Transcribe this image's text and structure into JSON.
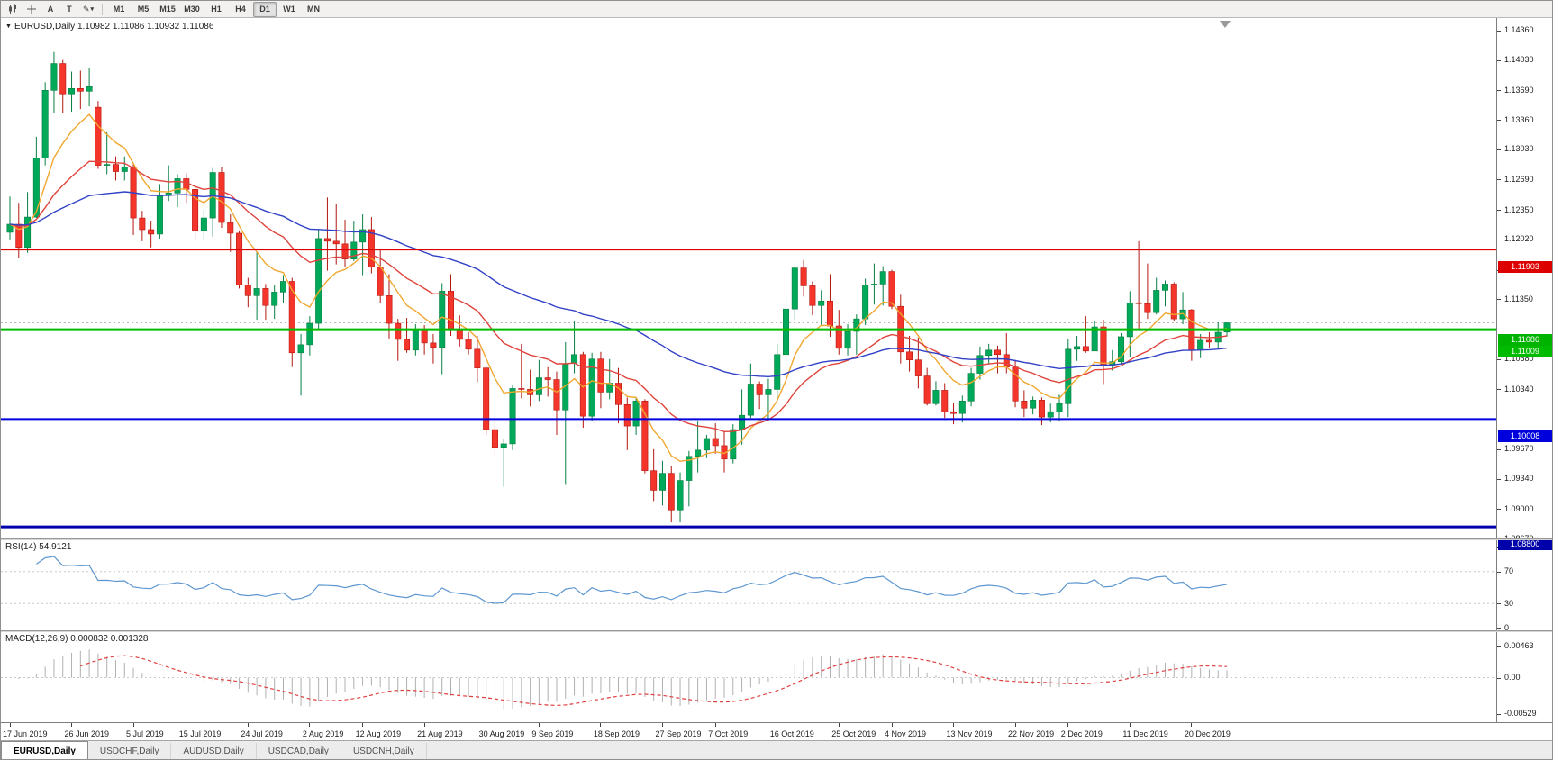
{
  "toolbar": {
    "tool_icons": [
      "candlestick-chart-icon",
      "crosshair-icon"
    ],
    "tool_buttons": [
      "A",
      "T"
    ],
    "draw_button": {
      "icon": "pencil-icon",
      "dropdown_icon": "chevron-down-icon"
    },
    "timeframes": [
      "M1",
      "M5",
      "M15",
      "M30",
      "H1",
      "H4",
      "D1",
      "W1",
      "MN"
    ],
    "active_timeframe": "D1"
  },
  "chart": {
    "symbol_label": "EURUSD,Daily",
    "ohlc_label": "1.10982 1.11086 1.10932 1.11086",
    "collapse_arrow": "▼",
    "price_axis_ticks": [
      "1.14360",
      "1.14030",
      "1.13690",
      "1.13360",
      "1.13030",
      "1.12690",
      "1.12350",
      "1.12020",
      "1.11680",
      "1.11350",
      "1.10680",
      "1.10340",
      "1.09670",
      "1.09340",
      "1.09000",
      "1.08670"
    ],
    "levels": [
      {
        "price": 1.11903,
        "label": "1.11903",
        "color": "#dd0000",
        "width": 1.2
      },
      {
        "price": 1.11009,
        "label": "1.11009",
        "color": "#00bb00",
        "width": 3
      },
      {
        "price": 1.10008,
        "label": "1.10008",
        "color": "#0000dd",
        "width": 2
      },
      {
        "price": 1.088,
        "label": "1.08800",
        "color": "#0000aa",
        "width": 3
      }
    ],
    "bid": {
      "price": 1.11086,
      "label": "1.11086",
      "color": "#00b300"
    },
    "colors": {
      "up": "#00a859",
      "up_border": "#067f42",
      "down": "#f4352b",
      "down_border": "#b3160e",
      "bid_line": "#b8b8b8",
      "rsi": "#5e97d0",
      "macd_hist": "#b0b0b0",
      "macd_signal": "#e04040",
      "panel_level": "#c8c8c8"
    }
  },
  "chart_data": {
    "type": "candlestick",
    "symbol": "EURUSD",
    "timeframe": "Daily",
    "ohlc": [
      [
        1.121,
        1.125,
        1.1202,
        1.1219
      ],
      [
        1.1219,
        1.1243,
        1.1181,
        1.1193
      ],
      [
        1.1193,
        1.1255,
        1.1187,
        1.1227
      ],
      [
        1.1227,
        1.1317,
        1.1226,
        1.1293
      ],
      [
        1.1293,
        1.1378,
        1.1285,
        1.1369
      ],
      [
        1.1369,
        1.1412,
        1.1344,
        1.1399
      ],
      [
        1.1399,
        1.1403,
        1.1344,
        1.1365
      ],
      [
        1.1365,
        1.139,
        1.1345,
        1.1371
      ],
      [
        1.1371,
        1.1391,
        1.1348,
        1.1368
      ],
      [
        1.1368,
        1.1394,
        1.1351,
        1.1373
      ],
      [
        1.135,
        1.1357,
        1.1281,
        1.1285
      ],
      [
        1.1285,
        1.1322,
        1.1275,
        1.1286
      ],
      [
        1.1286,
        1.1295,
        1.1268,
        1.1278
      ],
      [
        1.1278,
        1.1295,
        1.1268,
        1.1283
      ],
      [
        1.1283,
        1.1288,
        1.1207,
        1.1226
      ],
      [
        1.1226,
        1.1234,
        1.12,
        1.1213
      ],
      [
        1.1213,
        1.1223,
        1.1193,
        1.1208
      ],
      [
        1.1208,
        1.1264,
        1.1203,
        1.1252
      ],
      [
        1.1252,
        1.1285,
        1.1245,
        1.1254
      ],
      [
        1.1254,
        1.1275,
        1.1238,
        1.127
      ],
      [
        1.127,
        1.1276,
        1.1243,
        1.1258
      ],
      [
        1.1258,
        1.1262,
        1.1202,
        1.1212
      ],
      [
        1.1212,
        1.1235,
        1.1201,
        1.1226
      ],
      [
        1.1226,
        1.1282,
        1.1205,
        1.1277
      ],
      [
        1.1277,
        1.1283,
        1.1215,
        1.1221
      ],
      [
        1.1221,
        1.123,
        1.1188,
        1.1209
      ],
      [
        1.1209,
        1.1212,
        1.1147,
        1.1151
      ],
      [
        1.1151,
        1.1159,
        1.1126,
        1.1139
      ],
      [
        1.1139,
        1.1188,
        1.1112,
        1.1147
      ],
      [
        1.1147,
        1.1152,
        1.1112,
        1.1128
      ],
      [
        1.1128,
        1.1151,
        1.1113,
        1.1143
      ],
      [
        1.1143,
        1.1162,
        1.1131,
        1.1155
      ],
      [
        1.1155,
        1.1159,
        1.1059,
        1.1075
      ],
      [
        1.1075,
        1.1096,
        1.1027,
        1.1084
      ],
      [
        1.1084,
        1.1116,
        1.1072,
        1.1108
      ],
      [
        1.1108,
        1.1213,
        1.1101,
        1.1203
      ],
      [
        1.1203,
        1.1249,
        1.1167,
        1.12
      ],
      [
        1.12,
        1.1242,
        1.1174,
        1.1197
      ],
      [
        1.1197,
        1.1224,
        1.1171,
        1.118
      ],
      [
        1.118,
        1.1223,
        1.1178,
        1.1199
      ],
      [
        1.1199,
        1.123,
        1.1162,
        1.1213
      ],
      [
        1.1213,
        1.1227,
        1.1164,
        1.1171
      ],
      [
        1.1171,
        1.119,
        1.1131,
        1.1139
      ],
      [
        1.1139,
        1.1163,
        1.1091,
        1.1108
      ],
      [
        1.1108,
        1.1113,
        1.1066,
        1.109
      ],
      [
        1.109,
        1.1114,
        1.1075,
        1.1078
      ],
      [
        1.1078,
        1.1107,
        1.1072,
        1.11
      ],
      [
        1.11,
        1.1106,
        1.1073,
        1.1086
      ],
      [
        1.1086,
        1.1096,
        1.1063,
        1.1081
      ],
      [
        1.1081,
        1.1153,
        1.1051,
        1.1144
      ],
      [
        1.1144,
        1.1163,
        1.1094,
        1.1101
      ],
      [
        1.1101,
        1.1117,
        1.1082,
        1.109
      ],
      [
        1.109,
        1.1098,
        1.1073,
        1.1079
      ],
      [
        1.1079,
        1.1094,
        1.1042,
        1.1058
      ],
      [
        1.1058,
        1.1061,
        1.0983,
        1.0989
      ],
      [
        1.0989,
        1.0998,
        1.0958,
        1.0969
      ],
      [
        1.0969,
        1.0979,
        1.0925,
        1.0973
      ],
      [
        1.0973,
        1.1039,
        1.0966,
        1.1035
      ],
      [
        1.1035,
        1.1085,
        1.1024,
        1.1034
      ],
      [
        1.1034,
        1.1056,
        1.1015,
        1.1028
      ],
      [
        1.1028,
        1.1067,
        1.1021,
        1.1047
      ],
      [
        1.1047,
        1.1059,
        1.1026,
        1.1045
      ],
      [
        1.1045,
        1.1054,
        1.0983,
        1.1011
      ],
      [
        1.1011,
        1.1087,
        1.0927,
        1.1063
      ],
      [
        1.1063,
        1.111,
        1.1052,
        1.1073
      ],
      [
        1.1073,
        1.1076,
        1.0991,
        1.1004
      ],
      [
        1.1004,
        1.1075,
        1.0999,
        1.1068
      ],
      [
        1.1068,
        1.1076,
        1.1013,
        1.1031
      ],
      [
        1.1031,
        1.1068,
        1.1023,
        1.1041
      ],
      [
        1.1041,
        1.1058,
        1.0996,
        1.1017
      ],
      [
        1.1017,
        1.1025,
        1.0966,
        1.0993
      ],
      [
        1.0993,
        1.1024,
        1.0983,
        1.1021
      ],
      [
        1.1021,
        1.1023,
        1.094,
        1.0943
      ],
      [
        1.0943,
        1.0967,
        1.0909,
        1.0921
      ],
      [
        1.0921,
        1.0954,
        1.0904,
        1.094
      ],
      [
        1.094,
        1.0948,
        1.0885,
        1.0899
      ],
      [
        1.0899,
        1.0941,
        1.0885,
        1.0932
      ],
      [
        1.0932,
        1.0965,
        1.0903,
        1.0959
      ],
      [
        1.0959,
        1.0999,
        1.0941,
        1.0966
      ],
      [
        1.0966,
        1.0983,
        1.0957,
        1.0979
      ],
      [
        1.0979,
        1.0996,
        1.0962,
        1.0971
      ],
      [
        1.0971,
        1.0987,
        1.0941,
        1.0956
      ],
      [
        1.0956,
        1.0995,
        1.0951,
        1.0989
      ],
      [
        1.0989,
        1.1034,
        1.0972,
        1.1005
      ],
      [
        1.1005,
        1.1063,
        1.1002,
        1.104
      ],
      [
        1.104,
        1.1043,
        1.1012,
        1.1028
      ],
      [
        1.1028,
        1.1046,
        1.1001,
        1.1034
      ],
      [
        1.1034,
        1.1085,
        1.1023,
        1.1073
      ],
      [
        1.1073,
        1.114,
        1.1064,
        1.1124
      ],
      [
        1.1124,
        1.1172,
        1.1112,
        1.117
      ],
      [
        1.117,
        1.1179,
        1.1138,
        1.115
      ],
      [
        1.115,
        1.1155,
        1.1117,
        1.1128
      ],
      [
        1.1128,
        1.1145,
        1.1106,
        1.1133
      ],
      [
        1.1133,
        1.1163,
        1.1093,
        1.1105
      ],
      [
        1.1105,
        1.1123,
        1.1073,
        1.108
      ],
      [
        1.108,
        1.1107,
        1.1072,
        1.1099
      ],
      [
        1.1099,
        1.1118,
        1.1073,
        1.1113
      ],
      [
        1.1113,
        1.1158,
        1.1106,
        1.1151
      ],
      [
        1.1151,
        1.1175,
        1.1129,
        1.1152
      ],
      [
        1.1152,
        1.1172,
        1.1128,
        1.1166
      ],
      [
        1.1166,
        1.1168,
        1.1124,
        1.1127
      ],
      [
        1.1127,
        1.114,
        1.1063,
        1.1076
      ],
      [
        1.1076,
        1.1094,
        1.1054,
        1.1067
      ],
      [
        1.1067,
        1.1092,
        1.1035,
        1.1049
      ],
      [
        1.1049,
        1.1058,
        1.1016,
        1.1018
      ],
      [
        1.1018,
        1.1043,
        1.1016,
        1.1033
      ],
      [
        1.1033,
        1.1041,
        1.1002,
        1.1009
      ],
      [
        1.1009,
        1.1019,
        1.0995,
        1.1007
      ],
      [
        1.1007,
        1.1027,
        1.0997,
        1.1021
      ],
      [
        1.1021,
        1.1058,
        1.1015,
        1.1052
      ],
      [
        1.1052,
        1.1082,
        1.1045,
        1.1072
      ],
      [
        1.1072,
        1.1085,
        1.1062,
        1.1078
      ],
      [
        1.1078,
        1.1083,
        1.1052,
        1.1073
      ],
      [
        1.1073,
        1.1097,
        1.1052,
        1.1059
      ],
      [
        1.1059,
        1.1067,
        1.1014,
        1.1021
      ],
      [
        1.1021,
        1.1033,
        1.1003,
        1.1013
      ],
      [
        1.1013,
        1.1026,
        1.1006,
        1.1022
      ],
      [
        1.1022,
        1.1025,
        1.0994,
        1.1003
      ],
      [
        1.1003,
        1.1018,
        1.0997,
        1.1009
      ],
      [
        1.1009,
        1.1028,
        1.0998,
        1.1018
      ],
      [
        1.1018,
        1.109,
        1.1003,
        1.1079
      ],
      [
        1.1079,
        1.1094,
        1.1066,
        1.1082
      ],
      [
        1.1082,
        1.1116,
        1.1075,
        1.1077
      ],
      [
        1.1077,
        1.1111,
        1.1077,
        1.1104
      ],
      [
        1.1104,
        1.1112,
        1.104,
        1.106
      ],
      [
        1.106,
        1.1078,
        1.1055,
        1.1065
      ],
      [
        1.1065,
        1.1097,
        1.1063,
        1.1093
      ],
      [
        1.1093,
        1.1144,
        1.107,
        1.1131
      ],
      [
        1.1131,
        1.12,
        1.1102,
        1.113
      ],
      [
        1.113,
        1.1175,
        1.1113,
        1.112
      ],
      [
        1.112,
        1.1159,
        1.1118,
        1.1145
      ],
      [
        1.1145,
        1.1156,
        1.1127,
        1.1152
      ],
      [
        1.1152,
        1.1154,
        1.111,
        1.1113
      ],
      [
        1.1113,
        1.1143,
        1.1107,
        1.1123
      ],
      [
        1.1123,
        1.1124,
        1.1066,
        1.1078
      ],
      [
        1.1078,
        1.1096,
        1.1069,
        1.1089
      ],
      [
        1.1089,
        1.1098,
        1.108,
        1.1087
      ],
      [
        1.1087,
        1.1109,
        1.108,
        1.1098
      ],
      [
        1.10982,
        1.11086,
        1.10932,
        1.11086
      ]
    ],
    "x_ticks": [
      {
        "i": 0,
        "label": "17 Jun 2019"
      },
      {
        "i": 7,
        "label": "26 Jun 2019"
      },
      {
        "i": 14,
        "label": "5 Jul 2019"
      },
      {
        "i": 20,
        "label": "15 Jul 2019"
      },
      {
        "i": 27,
        "label": "24 Jul 2019"
      },
      {
        "i": 34,
        "label": "2 Aug 2019"
      },
      {
        "i": 40,
        "label": "12 Aug 2019"
      },
      {
        "i": 47,
        "label": "21 Aug 2019"
      },
      {
        "i": 54,
        "label": "30 Aug 2019"
      },
      {
        "i": 60,
        "label": "9 Sep 2019"
      },
      {
        "i": 67,
        "label": "18 Sep 2019"
      },
      {
        "i": 74,
        "label": "27 Sep 2019"
      },
      {
        "i": 80,
        "label": "7 Oct 2019"
      },
      {
        "i": 87,
        "label": "16 Oct 2019"
      },
      {
        "i": 94,
        "label": "25 Oct 2019"
      },
      {
        "i": 100,
        "label": "4 Nov 2019"
      },
      {
        "i": 107,
        "label": "13 Nov 2019"
      },
      {
        "i": 114,
        "label": "22 Nov 2019"
      },
      {
        "i": 120,
        "label": "2 Dec 2019"
      },
      {
        "i": 127,
        "label": "11 Dec 2019"
      },
      {
        "i": 134,
        "label": "20 Dec 2019"
      }
    ],
    "indicators": {
      "moving_averages": [
        {
          "period": 8,
          "color": "#f0a72f"
        },
        {
          "period": 21,
          "color": "#e0433b"
        },
        {
          "period": 55,
          "color": "#3142c6"
        }
      ],
      "rsi": {
        "title": "RSI(14) 54.9121",
        "period": 14,
        "levels": [
          70,
          30
        ],
        "axis": [
          {
            "v": 100,
            "t": "100"
          },
          {
            "v": 70,
            "t": "70"
          },
          {
            "v": 30,
            "t": "30"
          },
          {
            "v": 0,
            "t": "0"
          }
        ]
      },
      "macd": {
        "title": "MACD(12,26,9) 0.000832 0.001328",
        "fast": 12,
        "slow": 26,
        "signal": 9,
        "axis": [
          {
            "v": 0.00463,
            "t": "0.00463"
          },
          {
            "v": 0,
            "t": "0.00"
          },
          {
            "v": -0.00529,
            "t": "-0.00529"
          }
        ]
      }
    }
  },
  "tabs": {
    "labels": [
      "EURUSD,Daily",
      "USDCHF,Daily",
      "AUDUSD,Daily",
      "USDCAD,Daily",
      "USDCNH,Daily"
    ],
    "active_index": 0
  }
}
